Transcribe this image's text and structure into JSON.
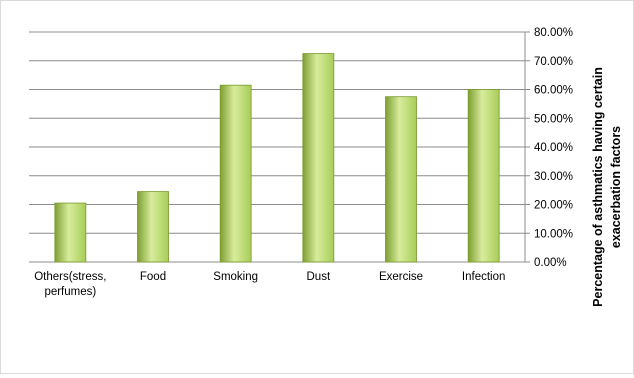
{
  "chart_data": {
    "type": "bar",
    "title": "",
    "xlabel": "",
    "ylabel": "Percentage of asthmatics having certain exacerbation factors",
    "ylabel_lines": [
      "Percentage of asthmatics having certain",
      "exacerbation factors"
    ],
    "categories": [
      "Others(stress, perfumes)",
      "Food",
      "Smoking",
      "Dust",
      "Exercise",
      "Infection"
    ],
    "category_lines": [
      [
        "Others(stress,",
        "perfumes)"
      ],
      [
        "Food"
      ],
      [
        "Smoking"
      ],
      [
        "Dust"
      ],
      [
        "Exercise"
      ],
      [
        "Infection"
      ]
    ],
    "values": [
      20.5,
      24.5,
      61.5,
      72.5,
      57.5,
      60.0
    ],
    "ylim": [
      0,
      80
    ],
    "yticks": [
      0,
      10,
      20,
      30,
      40,
      50,
      60,
      70,
      80
    ],
    "ytick_labels": [
      "0.00%",
      "10.00%",
      "20.00%",
      "30.00%",
      "40.00%",
      "50.00%",
      "60.00%",
      "70.00%",
      "80.00%"
    ],
    "y_axis_side": "right",
    "grid": true,
    "legend": "none",
    "colors": {
      "bar_light": "#d8ec9c",
      "bar_mid": "#a7cd58",
      "bar_dark": "#7e9f33",
      "bar_stroke": "#789a2e",
      "gridline": "#8c8c8c",
      "axis": "#8c8c8c"
    }
  }
}
